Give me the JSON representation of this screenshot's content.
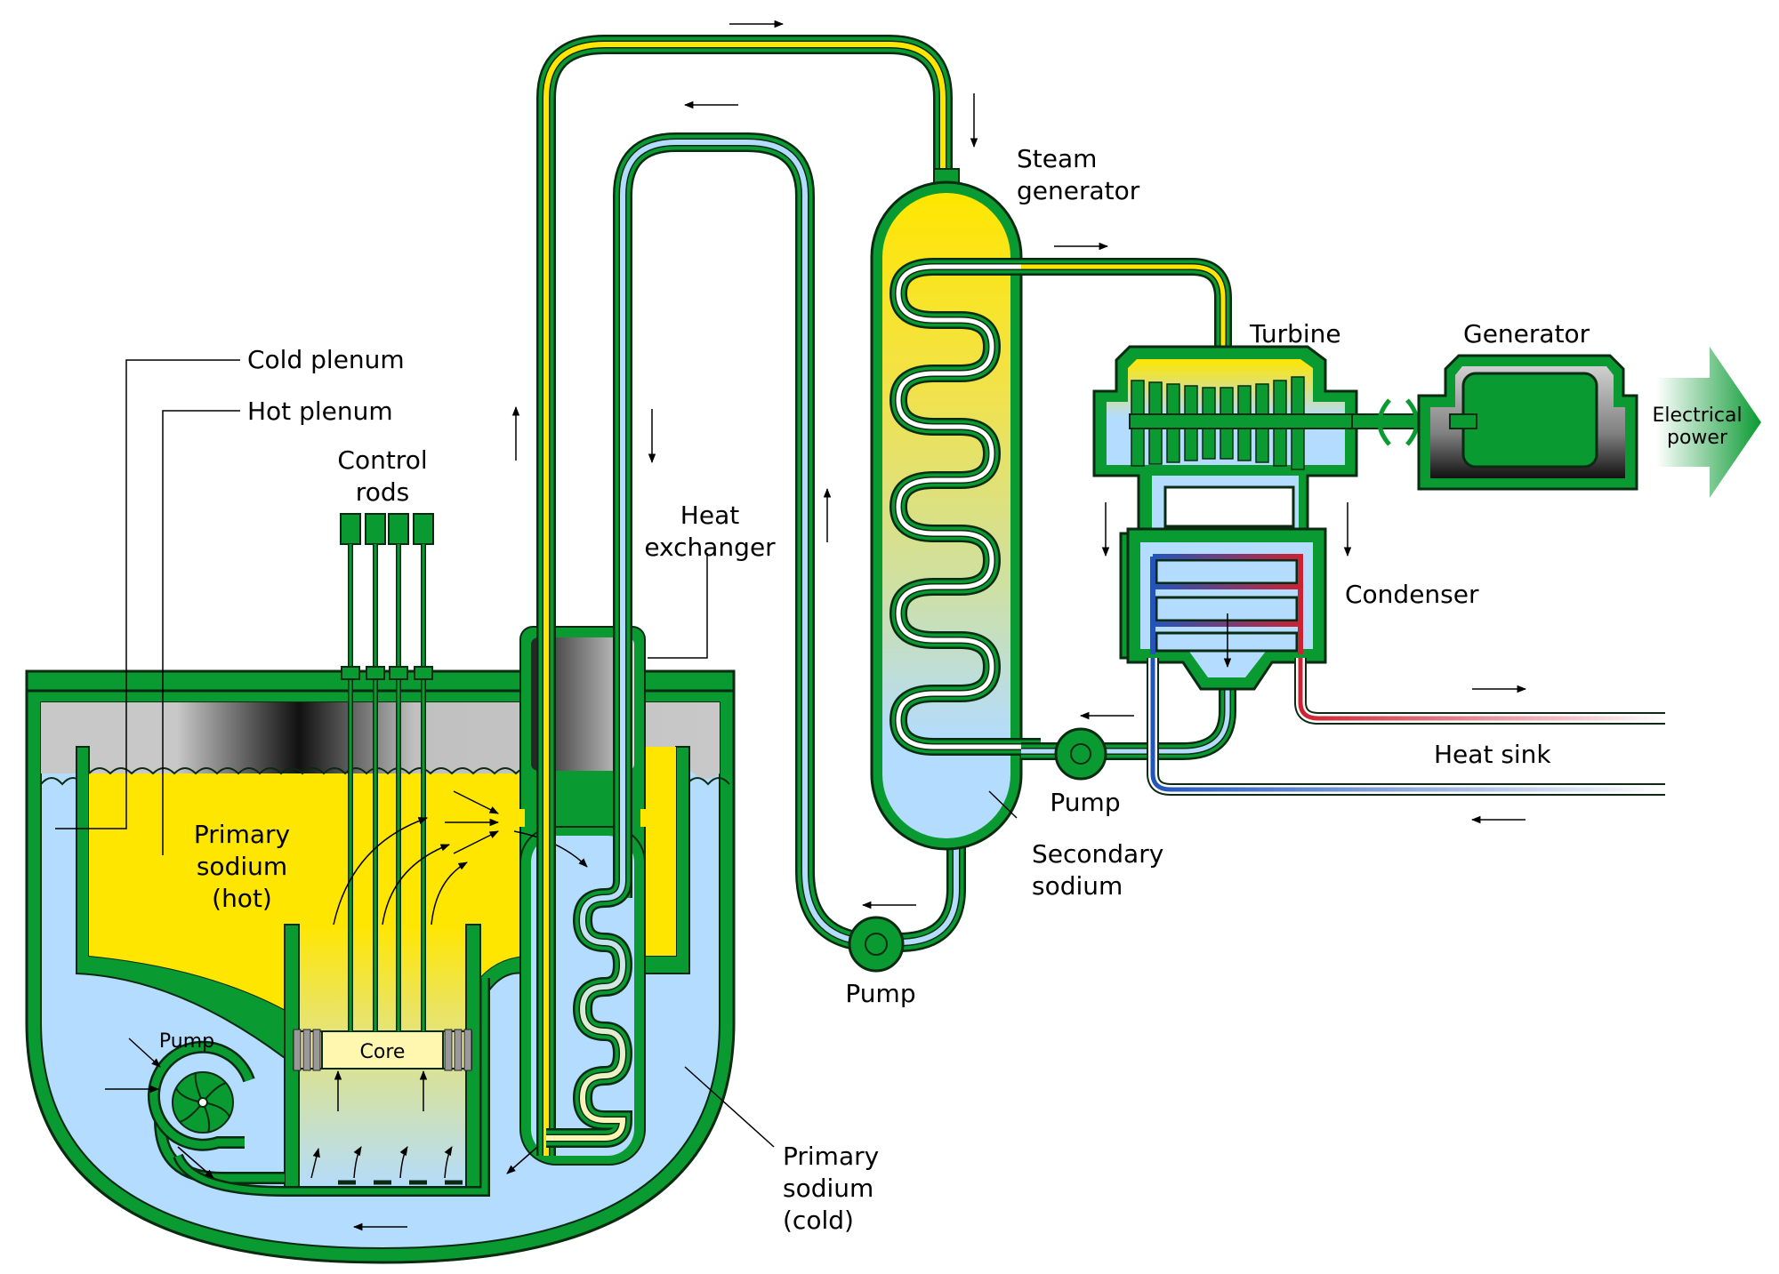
{
  "labels": {
    "cold_plenum": "Cold plenum",
    "hot_plenum": "Hot plenum",
    "control_rods_1": "Control",
    "control_rods_2": "rods",
    "heat_exchanger_1": "Heat",
    "heat_exchanger_2": "exchanger",
    "steam_generator_1": "Steam",
    "steam_generator_2": "generator",
    "turbine": "Turbine",
    "generator": "Generator",
    "electrical_power_1": "Electrical",
    "electrical_power_2": "power",
    "condenser": "Condenser",
    "heat_sink": "Heat sink",
    "pump_secondary": "Pump",
    "pump_tertiary": "Pump",
    "pump_primary": "Pump",
    "secondary_sodium_1": "Secondary",
    "secondary_sodium_2": "sodium",
    "primary_hot_1": "Primary",
    "primary_hot_2": "sodium",
    "primary_hot_3": "(hot)",
    "primary_cold_1": "Primary",
    "primary_cold_2": "sodium",
    "primary_cold_3": "(cold)",
    "core": "Core"
  },
  "colors": {
    "hot_sodium": "#ffe600",
    "cold_sodium": "#b3dcff",
    "vessel_green": "#0a9a32",
    "dark_outline": "#0a2a12",
    "argon_gray": "#c8c8c8",
    "heat_sink_hot": "#cc2233",
    "heat_sink_cold": "#2255bb"
  }
}
